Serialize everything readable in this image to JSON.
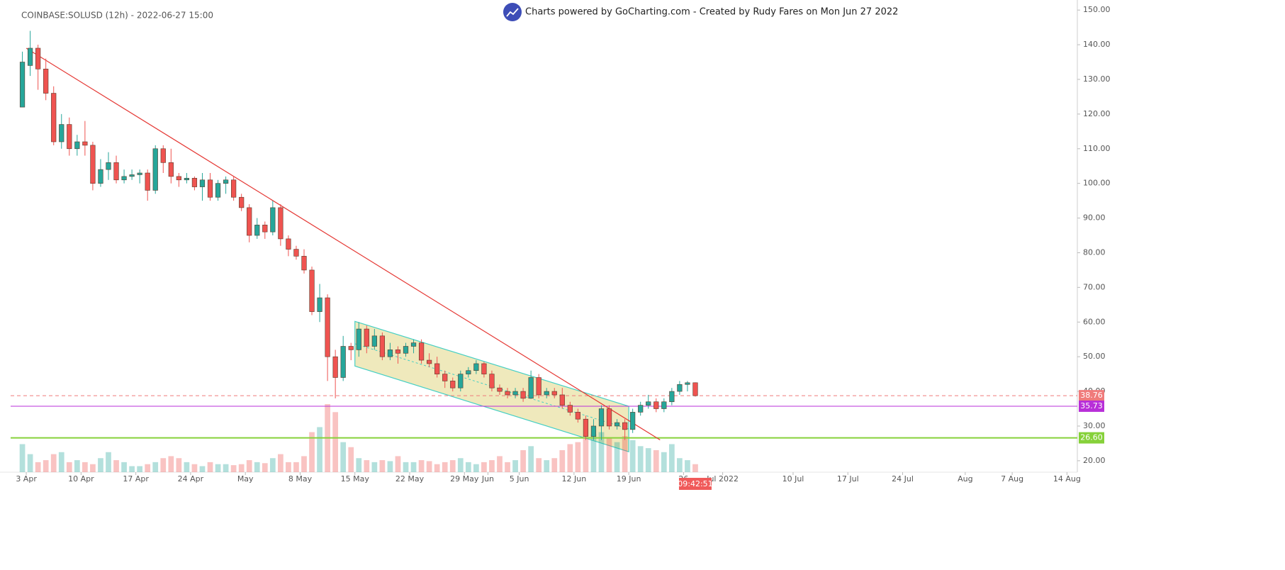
{
  "chart_data": {
    "type": "candlestick",
    "title": "COINBASE:SOLUSD (12h) - 2022-06-27 15:00",
    "header": "Charts powered by GoCharting.com - Created by Rudy Fares on Mon Jun 27 2022",
    "countdown": "09:42:51",
    "grid": false,
    "up_color": "#26a69a",
    "down_color": "#ef5350",
    "x": [
      "2022-04-02",
      "2022-04-03",
      "2022-04-04",
      "2022-04-05",
      "2022-04-06",
      "2022-04-07",
      "2022-04-08",
      "2022-04-09",
      "2022-04-10",
      "2022-04-11",
      "2022-04-12",
      "2022-04-13",
      "2022-04-14",
      "2022-04-15",
      "2022-04-16",
      "2022-04-17",
      "2022-04-18",
      "2022-04-19",
      "2022-04-20",
      "2022-04-21",
      "2022-04-22",
      "2022-04-23",
      "2022-04-24",
      "2022-04-25",
      "2022-04-26",
      "2022-04-27",
      "2022-04-28",
      "2022-04-29",
      "2022-04-30",
      "2022-05-01",
      "2022-05-02",
      "2022-05-03",
      "2022-05-04",
      "2022-05-05",
      "2022-05-06",
      "2022-05-07",
      "2022-05-08",
      "2022-05-09",
      "2022-05-10",
      "2022-05-11",
      "2022-05-12",
      "2022-05-13",
      "2022-05-14",
      "2022-05-15",
      "2022-05-16",
      "2022-05-17",
      "2022-05-18",
      "2022-05-19",
      "2022-05-20",
      "2022-05-21",
      "2022-05-22",
      "2022-05-23",
      "2022-05-24",
      "2022-05-25",
      "2022-05-26",
      "2022-05-27",
      "2022-05-28",
      "2022-05-29",
      "2022-05-30",
      "2022-05-31",
      "2022-06-01",
      "2022-06-02",
      "2022-06-03",
      "2022-06-04",
      "2022-06-05",
      "2022-06-06",
      "2022-06-07",
      "2022-06-08",
      "2022-06-09",
      "2022-06-10",
      "2022-06-11",
      "2022-06-12",
      "2022-06-13",
      "2022-06-14",
      "2022-06-15",
      "2022-06-16",
      "2022-06-17",
      "2022-06-18",
      "2022-06-19",
      "2022-06-20",
      "2022-06-21",
      "2022-06-22",
      "2022-06-23",
      "2022-06-24",
      "2022-06-25",
      "2022-06-26",
      "2022-06-27"
    ],
    "open": [
      122,
      134,
      139,
      133,
      126,
      112,
      117,
      110,
      112,
      111,
      100,
      104,
      106,
      101,
      102,
      102.5,
      103,
      98,
      110,
      106,
      102,
      101,
      101.5,
      99,
      101,
      96,
      100,
      101,
      96,
      93,
      85,
      88,
      86,
      93,
      84,
      81,
      79,
      75,
      63,
      67,
      50,
      44,
      53,
      52,
      58,
      53,
      56,
      50,
      52,
      51,
      53,
      54,
      49,
      48,
      45,
      43,
      41,
      45,
      46,
      48,
      45,
      41,
      40,
      39,
      40,
      38,
      44,
      39,
      40,
      39,
      36,
      34,
      32,
      27,
      30,
      35,
      30,
      31,
      29,
      34,
      36,
      37,
      35,
      37,
      40,
      42,
      42.5
    ],
    "high": [
      138,
      144,
      140,
      136,
      128,
      120,
      119,
      114,
      118,
      112,
      107,
      109,
      108,
      104,
      104,
      104,
      104,
      111,
      111,
      110,
      103,
      103,
      102,
      103,
      103,
      101,
      102,
      102,
      97,
      94,
      90,
      89,
      95,
      94,
      85,
      82,
      81,
      76,
      71,
      68,
      52,
      56,
      54,
      60,
      59,
      58,
      57,
      54,
      53,
      54,
      55,
      55,
      51,
      50,
      46,
      44,
      46,
      47,
      49,
      48.5,
      46,
      42,
      41,
      41,
      41,
      46,
      45,
      41,
      41,
      41,
      37,
      35,
      33,
      32,
      36,
      36,
      32,
      32,
      35,
      37,
      39,
      38,
      38,
      41,
      43,
      43,
      42.6
    ],
    "low": [
      122,
      131,
      127,
      124,
      111,
      110,
      108,
      108,
      108,
      98,
      99,
      101,
      100,
      100,
      101,
      100,
      95,
      97,
      103,
      100,
      99,
      100,
      98,
      95,
      95,
      95,
      97,
      95,
      92,
      83,
      84,
      84,
      85,
      82,
      79,
      78,
      74,
      62,
      60,
      43,
      38,
      43,
      49,
      50,
      51,
      52,
      49,
      49,
      48,
      50,
      51,
      48,
      47,
      44,
      41,
      40,
      40,
      44,
      45,
      44,
      40,
      39,
      38,
      38,
      37,
      38,
      38,
      38,
      38,
      35,
      33,
      31,
      26,
      26,
      26,
      29,
      29,
      26,
      28,
      33,
      35,
      34,
      34,
      36,
      39,
      40,
      38.5
    ],
    "close": [
      135,
      139,
      133,
      126,
      112,
      117,
      110,
      112,
      111,
      100,
      104,
      106,
      101,
      102,
      102.5,
      103,
      98,
      110,
      106,
      102,
      101,
      101.5,
      99,
      101,
      96,
      100,
      101,
      96,
      93,
      85,
      88,
      86,
      93,
      84,
      81,
      79,
      75,
      63,
      67,
      50,
      44,
      53,
      52,
      58,
      53,
      56,
      50,
      52,
      51,
      53,
      54,
      49,
      48,
      45,
      43,
      41,
      45,
      46,
      48,
      45,
      41,
      40,
      39,
      40,
      38,
      44,
      39,
      40,
      39,
      36,
      34,
      32,
      27,
      30,
      35,
      30,
      31,
      29,
      34,
      36,
      37,
      35,
      37,
      40,
      42,
      42.5,
      38.76
    ],
    "volume": [
      28,
      18,
      10,
      12,
      18,
      20,
      10,
      12,
      10,
      8,
      14,
      20,
      12,
      10,
      6,
      6,
      8,
      10,
      14,
      16,
      14,
      10,
      8,
      6,
      10,
      8,
      8,
      7,
      8,
      12,
      10,
      9,
      14,
      18,
      10,
      10,
      16,
      40,
      45,
      68,
      60,
      30,
      25,
      14,
      12,
      10,
      12,
      11,
      16,
      10,
      10,
      12,
      11,
      8,
      10,
      12,
      14,
      10,
      8,
      10,
      12,
      16,
      10,
      12,
      22,
      26,
      14,
      12,
      14,
      22,
      28,
      30,
      34,
      38,
      40,
      34,
      30,
      36,
      32,
      26,
      24,
      22,
      20,
      28,
      14,
      12,
      8
    ],
    "xlim": [
      "2022-04-01",
      "2022-08-15"
    ],
    "ylim": [
      16.7,
      152.9
    ],
    "xticks": [
      {
        "value": "2022-04-03",
        "label": "3 Apr"
      },
      {
        "value": "2022-04-10",
        "label": "10 Apr"
      },
      {
        "value": "2022-04-17",
        "label": "17 Apr"
      },
      {
        "value": "2022-04-24",
        "label": "24 Apr"
      },
      {
        "value": "2022-05-01",
        "label": "May"
      },
      {
        "value": "2022-05-08",
        "label": "8 May"
      },
      {
        "value": "2022-05-15",
        "label": "15 May"
      },
      {
        "value": "2022-05-22",
        "label": "22 May"
      },
      {
        "value": "2022-05-29",
        "label": "29 May"
      },
      {
        "value": "2022-06-01",
        "label": "Jun"
      },
      {
        "value": "2022-06-05",
        "label": "5 Jun"
      },
      {
        "value": "2022-06-12",
        "label": "12 Jun"
      },
      {
        "value": "2022-06-19",
        "label": "19 Jun"
      },
      {
        "value": "2022-06-26",
        "label": "26"
      },
      {
        "value": "2022-07-01",
        "label": "Jul 2022"
      },
      {
        "value": "2022-07-10",
        "label": "10 Jul"
      },
      {
        "value": "2022-07-17",
        "label": "17 Jul"
      },
      {
        "value": "2022-07-24",
        "label": "24 Jul"
      },
      {
        "value": "2022-08-01",
        "label": "Aug"
      },
      {
        "value": "2022-08-07",
        "label": "7 Aug"
      },
      {
        "value": "2022-08-14",
        "label": "14 Aug"
      }
    ],
    "yticks": [
      {
        "value": 20,
        "label": "20.00"
      },
      {
        "value": 30,
        "label": "30.00"
      },
      {
        "value": 40,
        "label": "40.00"
      },
      {
        "value": 50,
        "label": "50.00"
      },
      {
        "value": 60,
        "label": "60.00"
      },
      {
        "value": 70,
        "label": "70.00"
      },
      {
        "value": 80,
        "label": "80.00"
      },
      {
        "value": 90,
        "label": "90.00"
      },
      {
        "value": 100,
        "label": "100.00"
      },
      {
        "value": 110,
        "label": "110.00"
      },
      {
        "value": 120,
        "label": "120.00"
      },
      {
        "value": 130,
        "label": "130.00"
      },
      {
        "value": 140,
        "label": "140.00"
      },
      {
        "value": 150,
        "label": "150.00"
      }
    ],
    "hlines": [
      {
        "value": 38.76,
        "color": "#f07b7b",
        "style": "dashed"
      },
      {
        "value": 35.73,
        "color": "#b82fd8",
        "style": "solid"
      },
      {
        "value": 26.6,
        "label": "26.60",
        "color": "#86d13a",
        "style": "thick"
      }
    ],
    "trendline": {
      "x1": "2022-04-03",
      "y1": 139,
      "x2": "2022-06-23",
      "y2": 26,
      "color": "#e53935"
    },
    "channel": {
      "x1": "2022-05-15",
      "top1": 60.2,
      "bottom1": 47.3,
      "x2": "2022-06-19",
      "top2": 35.7,
      "bottom2": 22.6,
      "fill": "#e8e0a0",
      "stroke": "#45cfc4"
    }
  }
}
